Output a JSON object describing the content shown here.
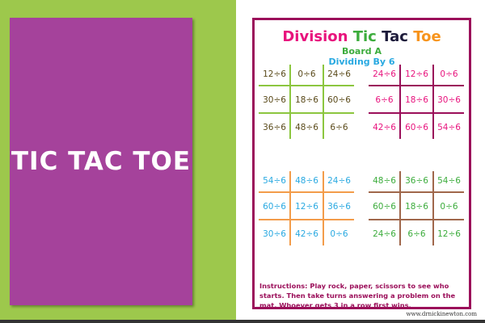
{
  "card": {
    "title": "TIC TAC TOE",
    "color": "#a5429b"
  },
  "worksheet": {
    "title_words": [
      {
        "text": "Division",
        "color": "#e8137d"
      },
      {
        "text": "Tic",
        "color": "#3cac3c"
      },
      {
        "text": "Tac",
        "color": "#1c1a3a"
      },
      {
        "text": "Toe",
        "color": "#f7941d"
      }
    ],
    "board": "Board A",
    "subtitle": "Dividing By 6",
    "grids": [
      {
        "line_color": "#8cc63f",
        "text_color": "#5a4a1a",
        "cells": [
          "12÷6",
          "0÷6",
          "24÷6",
          "30÷6",
          "18÷6",
          "60÷6",
          "36÷6",
          "48÷6",
          "6÷6"
        ]
      },
      {
        "line_color": "#9b0f5a",
        "text_color": "#e8137d",
        "cells": [
          "24÷6",
          "12÷6",
          "0÷6",
          "6÷6",
          "18÷6",
          "30÷6",
          "42÷6",
          "60÷6",
          "54÷6"
        ]
      },
      {
        "line_color": "#f39c4a",
        "text_color": "#29a9e1",
        "cells": [
          "54÷6",
          "48÷6",
          "24÷6",
          "60÷6",
          "12÷6",
          "36÷6",
          "30÷6",
          "42÷6",
          "0÷6"
        ]
      },
      {
        "line_color": "#a0674b",
        "text_color": "#3cac3c",
        "cells": [
          "48÷6",
          "36÷6",
          "54÷6",
          "60÷6",
          "18÷6",
          "0÷6",
          "24÷6",
          "6÷6",
          "12÷6"
        ]
      }
    ],
    "instructions": "Instructions: Play rock, paper, scissors to see who starts. Then take turns answering a problem on the mat. Whoever gets 3 in a row first wins.",
    "url": "www.drnickinewton.com"
  }
}
